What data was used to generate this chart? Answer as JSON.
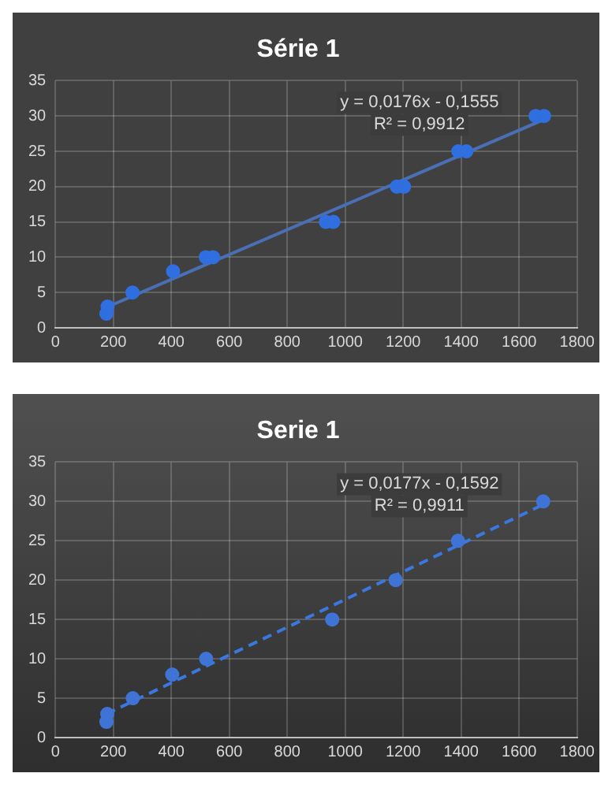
{
  "chart_data": [
    {
      "type": "scatter",
      "title": "Série 1",
      "xlim": [
        0,
        1800
      ],
      "xticks": [
        0,
        200,
        400,
        600,
        800,
        1000,
        1200,
        1400,
        1600,
        1800
      ],
      "ylim": [
        0,
        35
      ],
      "yticks": [
        0,
        5,
        10,
        15,
        20,
        25,
        30,
        35
      ],
      "grid": true,
      "legend": false,
      "marker": "circle",
      "annotations": [
        "y = 0,0176x - 0,1555",
        "R² = 0,9912"
      ],
      "series": [
        {
          "color": "#2f6fe0",
          "x": [
            176,
            180,
            266,
            406,
            519,
            544,
            933,
            959,
            1178,
            1203,
            1390,
            1418,
            1657,
            1686
          ],
          "values": [
            2,
            3,
            5,
            8,
            10,
            10,
            15,
            15,
            20,
            20,
            25,
            25,
            30,
            30
          ]
        },
        {
          "type": "line",
          "color": "#4a6fb5",
          "line_style": "solid",
          "marker": "none",
          "x": [
            176,
            1686
          ],
          "values": [
            2.9,
            29.5
          ]
        }
      ]
    },
    {
      "type": "scatter",
      "title": "Serie 1",
      "xlim": [
        0,
        1800
      ],
      "xticks": [
        0,
        200,
        400,
        600,
        800,
        1000,
        1200,
        1400,
        1600,
        1800
      ],
      "ylim": [
        0,
        35
      ],
      "yticks": [
        0,
        5,
        10,
        15,
        20,
        25,
        30,
        35
      ],
      "grid": true,
      "legend": false,
      "marker": "circle",
      "annotations": [
        "y = 0,0177x - 0,1592",
        "R² = 0,9911"
      ],
      "series": [
        {
          "color": "#3f74d6",
          "x": [
            176,
            179,
            267,
            403,
            520,
            955,
            1174,
            1389,
            1683
          ],
          "values": [
            2,
            3,
            5,
            8,
            10,
            15,
            20,
            25,
            30
          ]
        },
        {
          "type": "line",
          "color": "#3a78e0",
          "line_style": "dashed",
          "marker": "none",
          "x": [
            176,
            1683
          ],
          "values": [
            3.0,
            29.6
          ]
        }
      ]
    }
  ]
}
